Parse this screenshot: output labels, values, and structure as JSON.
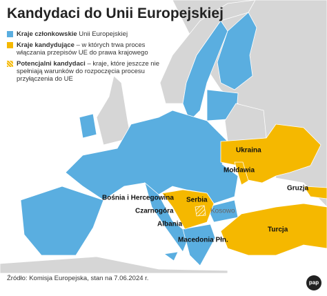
{
  "header": {
    "title": "Kandydaci do Unii Europejskiej"
  },
  "legend": [
    {
      "label": "Kraje członkowskie",
      "description": "Unii Europejskiej"
    },
    {
      "label": "Kraje kandydujące",
      "description": "– w których trwa proces włączania przepisów UE do prawa krajowego"
    },
    {
      "label": "Potencjalni kandydaci",
      "description": "– kraje, które jeszcze nie spełniają warunków do rozpoczęcia procesu przyłączenia do UE"
    }
  ],
  "labels": [
    "Ukraina",
    "Mołdawia",
    "Gruzja",
    "Bośnia i Hercegowina",
    "Serbia",
    "Kosowo",
    "Czarnogóra",
    "Albania",
    "Macedonia Płn.",
    "Turcja"
  ],
  "source": "Źródło: Komisja Europejska, stan na 7.06.2024 r.",
  "logo": "pap"
}
